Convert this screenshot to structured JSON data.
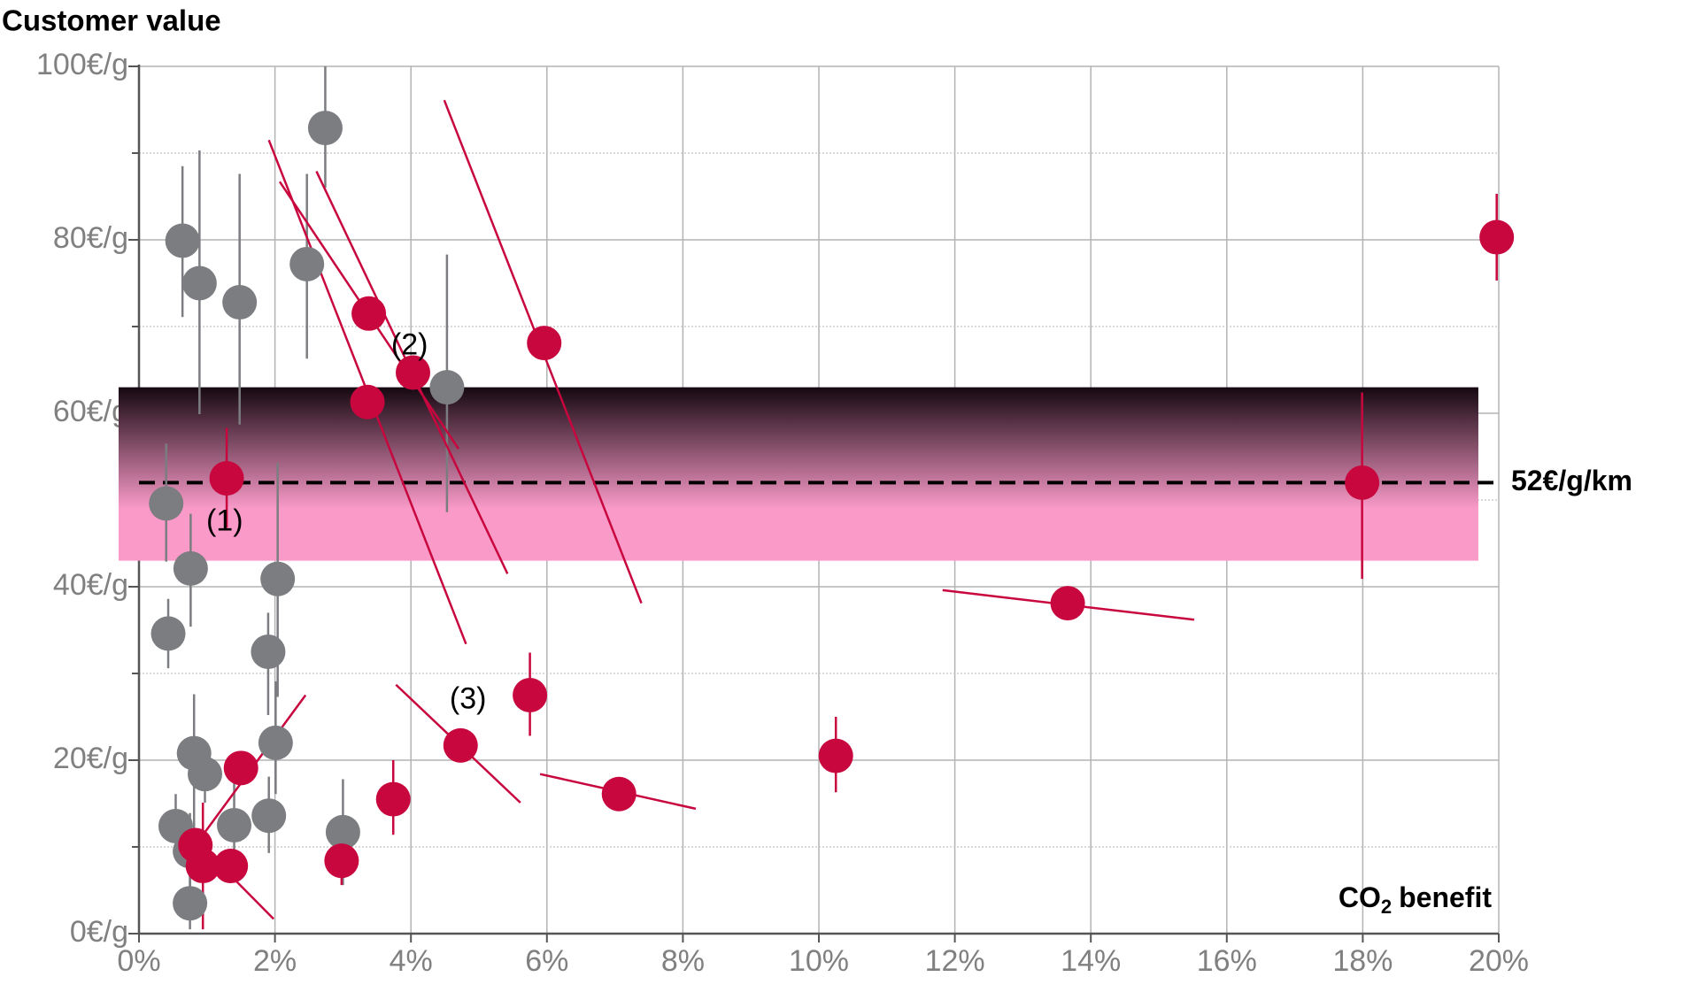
{
  "chart_data": {
    "type": "scatter",
    "title": "Customer value",
    "x_label": {
      "main": "CO",
      "sub": "2",
      "rest": "benefit"
    },
    "xlim": [
      0,
      20
    ],
    "xticks": [
      {
        "value": 0,
        "label": "0%"
      },
      {
        "value": 2,
        "label": "2%"
      },
      {
        "value": 4,
        "label": "4%"
      },
      {
        "value": 6,
        "label": "6%"
      },
      {
        "value": 8,
        "label": "8%"
      },
      {
        "value": 10,
        "label": "10%"
      },
      {
        "value": 12,
        "label": "12%"
      },
      {
        "value": 14,
        "label": "14%"
      },
      {
        "value": 16,
        "label": "16%"
      },
      {
        "value": 18,
        "label": "18%"
      },
      {
        "value": 20,
        "label": "20%"
      }
    ],
    "ylim": [
      0,
      100
    ],
    "yticks": [
      {
        "value": 0,
        "label": "0€/g"
      },
      {
        "value": 20,
        "label": "20€/g"
      },
      {
        "value": 40,
        "label": "40€/g"
      },
      {
        "value": 60,
        "label": "60€/g"
      },
      {
        "value": 80,
        "label": "80€/g"
      },
      {
        "value": 100,
        "label": "100€/g"
      }
    ],
    "yminor_ticks": [
      10,
      30,
      50,
      70,
      90
    ],
    "grid": true,
    "band": {
      "x_range": [
        -0.3,
        19.7
      ],
      "y_range": [
        43,
        63
      ],
      "top_color": "#150810",
      "bottom_color": "#f99ac8"
    },
    "reference_line": {
      "value": 52,
      "label": "52€/g/km"
    },
    "annotations": [
      {
        "text": "(1)",
        "x": 1.26,
        "y": 47.4
      },
      {
        "text": "(2)",
        "x": 3.98,
        "y": 67.7
      },
      {
        "text": "(3)",
        "x": 4.84,
        "y": 26.9
      }
    ],
    "series": [
      {
        "color": "#7b7d80",
        "x": [
          0.64,
          0.89,
          1.48,
          2.47,
          2.74,
          4.53,
          0.4,
          0.76,
          0.43,
          2.04,
          1.9,
          2.01,
          0.81,
          0.97,
          0.54,
          0.75,
          0.75,
          1.4,
          1.91,
          3.0
        ],
        "values": [
          79.9,
          75.0,
          72.8,
          77.2,
          92.9,
          63.0,
          49.6,
          42.1,
          34.6,
          40.9,
          32.5,
          22.0,
          20.8,
          18.4,
          12.4,
          9.5,
          3.5,
          12.5,
          13.6,
          11.7
        ],
        "segments": [
          [
            [
              0.64,
              88.5,
              0.64,
              71.1
            ]
          ],
          [
            [
              0.89,
              90.3,
              0.89,
              59.9
            ]
          ],
          [
            [
              1.48,
              87.6,
              1.48,
              58.7
            ]
          ],
          [
            [
              2.47,
              87.6,
              2.47,
              66.3
            ]
          ],
          [
            [
              2.74,
              100,
              2.74,
              86
            ]
          ],
          [
            [
              4.53,
              78.3,
              4.53,
              48.6
            ]
          ],
          [
            [
              0.4,
              56.5,
              0.4,
              42.9
            ]
          ],
          [
            [
              0.76,
              48.4,
              0.76,
              35.4
            ]
          ],
          [
            [
              0.43,
              38.6,
              0.43,
              30.6
            ]
          ],
          [
            [
              2.04,
              54.3,
              2.04,
              27.3
            ]
          ],
          [
            [
              1.9,
              37.0,
              1.9,
              25.2
            ]
          ],
          [
            [
              2.01,
              29.1,
              2.01,
              16.1
            ]
          ],
          [
            [
              0.81,
              27.6,
              0.81,
              10.2
            ]
          ],
          [
            [
              0.97,
              21.2,
              0.97,
              15.1
            ]
          ],
          [
            [
              0.54,
              16.1,
              0.54,
              9.0
            ]
          ],
          [
            [
              0.75,
              13.9,
              0.75,
              4.8
            ]
          ],
          [
            [
              0.75,
              6.6,
              0.75,
              0.5
            ]
          ],
          [
            [
              1.4,
              17.5,
              1.4,
              9.0
            ]
          ],
          [
            [
              1.91,
              18.1,
              1.91,
              9.3
            ]
          ],
          [
            [
              3.0,
              17.8,
              3.0,
              5.6
            ]
          ]
        ]
      },
      {
        "color": "#c8073f",
        "x": [
          1.29,
          3.38,
          4.03,
          3.36,
          5.96,
          19.97,
          17.99,
          13.66,
          5.75,
          4.73,
          10.25,
          7.06,
          3.74,
          1.5,
          0.83,
          0.94,
          1.35,
          2.98
        ],
        "values": [
          52.5,
          71.5,
          64.7,
          61.3,
          68.1,
          80.3,
          52.0,
          38.1,
          27.5,
          21.7,
          20.5,
          16.1,
          15.5,
          19.1,
          10.2,
          7.8,
          7.8,
          8.4
        ],
        "segments": [
          [
            [
              1.29,
              58.3,
              1.29,
              46.8
            ]
          ],
          [
            [
              2.07,
              86.7,
              4.7,
              55.9
            ]
          ],
          [
            [
              2.61,
              87.9,
              5.42,
              41.5
            ]
          ],
          [
            [
              1.91,
              91.5,
              4.81,
              33.4
            ]
          ],
          [
            [
              4.49,
              96.1,
              7.39,
              38.1
            ]
          ],
          [
            [
              19.97,
              85.3,
              19.97,
              75.3
            ]
          ],
          [
            [
              17.99,
              62.4,
              17.99,
              40.9
            ]
          ],
          [
            [
              11.82,
              39.6,
              15.52,
              36.2
            ]
          ],
          [
            [
              5.75,
              32.4,
              5.75,
              22.8
            ]
          ],
          [
            [
              3.78,
              28.7,
              5.61,
              15.1
            ]
          ],
          [
            [
              10.25,
              25.0,
              10.25,
              16.3
            ]
          ],
          [
            [
              5.9,
              18.4,
              8.19,
              14.4
            ]
          ],
          [
            [
              3.74,
              20.0,
              3.74,
              11.4
            ]
          ],
          [
            [
              0.83,
              10.2,
              2.45,
              27.5
            ]
          ],
          [
            [
              0.59,
              12.7,
              1.98,
              1.7
            ]
          ],
          [
            [
              0.94,
              15.1,
              0.94,
              0.5
            ]
          ],
          [],
          [
            [
              2.98,
              10.8,
              2.98,
              5.6
            ]
          ]
        ]
      }
    ]
  }
}
